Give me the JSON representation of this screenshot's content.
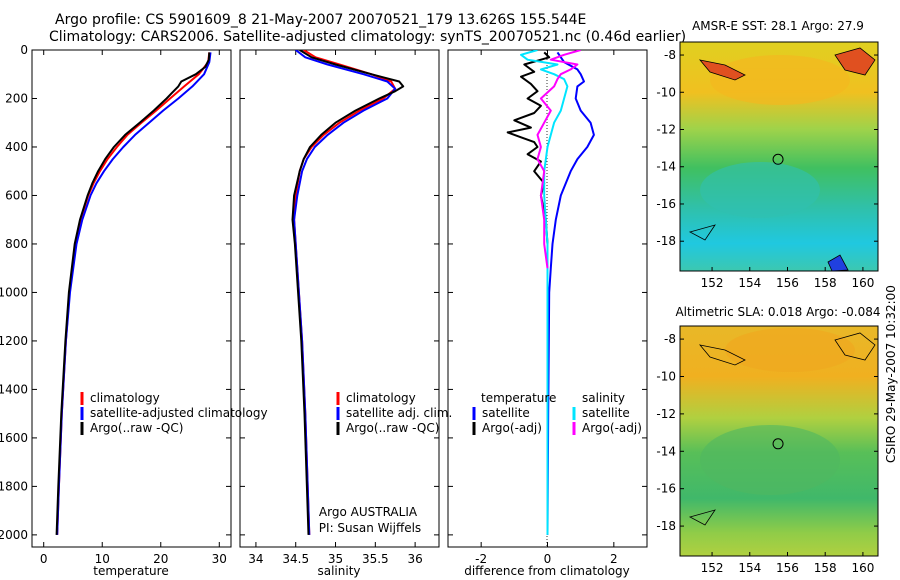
{
  "header": {
    "line1": "Argo profile: CS 5901609_8 21-May-2007 20070521_179 13.626S 155.544E",
    "line2": "Climatology: CARS2006. Satellite-adjusted climatology: synTS_20070521.nc (0.46d earlier)"
  },
  "side_stamp": "CSIRO 29-May-2007 10:32:00",
  "colors": {
    "climatology": "#ff0000",
    "satellite": "#0000ff",
    "argo": "#000000",
    "sal_satellite": "#00e5ff",
    "sal_argo": "#ff00ff"
  },
  "chart_data": [
    {
      "type": "line",
      "name": "temperature",
      "xlabel": "temperature",
      "xlim": [
        -2,
        32
      ],
      "ylim": [
        0,
        2050
      ],
      "xticks": [
        "0",
        "10",
        "20",
        "30"
      ],
      "yticks": [
        "0",
        "200",
        "400",
        "600",
        "800",
        "1000",
        "1200",
        "1400",
        "1600",
        "1800",
        "2000"
      ],
      "legend": [
        "climatology",
        "satellite-adjusted climatology",
        "Argo(..raw -QC)"
      ],
      "series": [
        {
          "name": "climatology",
          "color": "red",
          "depth": [
            10,
            50,
            100,
            150,
            200,
            250,
            300,
            350,
            400,
            450,
            500,
            550,
            600,
            700,
            800,
            1000,
            1200,
            1500,
            1800,
            2000
          ],
          "values": [
            28.3,
            28.1,
            26.5,
            24.0,
            21.6,
            19.2,
            16.7,
            14.3,
            12.5,
            10.9,
            9.6,
            8.5,
            7.6,
            6.3,
            5.4,
            4.4,
            3.8,
            3.1,
            2.6,
            2.3
          ]
        },
        {
          "name": "satellite",
          "color": "blue",
          "depth": [
            10,
            50,
            100,
            150,
            200,
            250,
            300,
            350,
            400,
            450,
            500,
            550,
            600,
            700,
            800,
            1000,
            1200,
            1500,
            1800,
            2000
          ],
          "values": [
            28.5,
            28.3,
            27.4,
            25.4,
            23.0,
            20.4,
            18.0,
            15.6,
            13.6,
            11.8,
            10.3,
            9.0,
            8.0,
            6.6,
            5.6,
            4.5,
            3.8,
            3.1,
            2.6,
            2.3
          ]
        },
        {
          "name": "argo",
          "color": "black",
          "depth": [
            10,
            40,
            70,
            100,
            130,
            150,
            180,
            200,
            250,
            300,
            350,
            400,
            450,
            500,
            550,
            600,
            700,
            800,
            1000,
            1200,
            1500,
            1800,
            2000
          ],
          "values": [
            28.3,
            28.2,
            27.6,
            26.0,
            23.5,
            23.0,
            21.8,
            21.0,
            18.8,
            16.4,
            13.9,
            12.0,
            10.5,
            9.3,
            8.3,
            7.5,
            6.2,
            5.3,
            4.3,
            3.7,
            3.0,
            2.5,
            2.2
          ]
        }
      ]
    },
    {
      "type": "line",
      "name": "salinity",
      "xlabel": "salinity",
      "xlim": [
        33.8,
        36.3
      ],
      "ylim": [
        0,
        2050
      ],
      "xticks": [
        "34",
        "34.5",
        "35",
        "35.5",
        "36"
      ],
      "legend": [
        "climatology",
        "satellite adj. clim.",
        "Argo(..raw -QC)"
      ],
      "annotation": [
        "Argo AUSTRALIA",
        "PI: Susan Wijffels"
      ],
      "series": [
        {
          "name": "climatology",
          "color": "red",
          "depth": [
            0,
            30,
            60,
            100,
            130,
            160,
            200,
            250,
            300,
            350,
            400,
            450,
            500,
            600,
            700,
            800,
            1000,
            1200,
            1500,
            1800,
            2000
          ],
          "values": [
            34.6,
            34.75,
            35.05,
            35.45,
            35.7,
            35.75,
            35.6,
            35.3,
            35.05,
            34.85,
            34.7,
            34.6,
            34.55,
            34.5,
            34.48,
            34.5,
            34.54,
            34.58,
            34.62,
            34.65,
            34.67
          ]
        },
        {
          "name": "satellite",
          "color": "blue",
          "depth": [
            0,
            30,
            60,
            100,
            130,
            160,
            200,
            250,
            300,
            350,
            400,
            450,
            500,
            600,
            700,
            800,
            1000,
            1200,
            1500,
            1800,
            2000
          ],
          "values": [
            34.5,
            34.62,
            34.9,
            35.35,
            35.65,
            35.75,
            35.65,
            35.35,
            35.1,
            34.9,
            34.74,
            34.64,
            34.58,
            34.52,
            34.48,
            34.5,
            34.54,
            34.58,
            34.62,
            34.65,
            34.67
          ]
        },
        {
          "name": "argo",
          "color": "black",
          "depth": [
            0,
            30,
            60,
            100,
            130,
            150,
            170,
            200,
            250,
            300,
            350,
            400,
            450,
            500,
            600,
            700,
            800,
            1000,
            1200,
            1500,
            1800,
            2000
          ],
          "values": [
            34.55,
            34.7,
            35.0,
            35.45,
            35.8,
            35.85,
            35.75,
            35.55,
            35.25,
            35.0,
            34.82,
            34.68,
            34.6,
            34.55,
            34.48,
            34.46,
            34.49,
            34.53,
            34.57,
            34.61,
            34.64,
            34.66
          ]
        }
      ]
    },
    {
      "type": "line",
      "name": "difference",
      "xlabel": "difference from climatology",
      "xlim": [
        -3,
        3
      ],
      "ylim": [
        0,
        2050
      ],
      "xticks": [
        "-2",
        "0",
        "2"
      ],
      "legend_temperature": {
        "title": "temperature",
        "items": [
          "satellite",
          "Argo(-adj)"
        ]
      },
      "legend_salinity": {
        "title": "salinity",
        "items": [
          "satellite",
          "Argo(-adj)"
        ]
      },
      "series": [
        {
          "name": "temperature satellite",
          "color": "blue",
          "depth": [
            10,
            50,
            80,
            100,
            130,
            150,
            200,
            250,
            300,
            350,
            400,
            450,
            500,
            600,
            700,
            800,
            900,
            1000,
            1500,
            2000
          ],
          "values": [
            0.3,
            0.5,
            0.9,
            1.0,
            1.1,
            0.9,
            0.85,
            1.0,
            1.3,
            1.4,
            1.2,
            0.9,
            0.7,
            0.4,
            0.25,
            0.15,
            0.1,
            0.05,
            0.02,
            0.0
          ]
        },
        {
          "name": "temperature argo",
          "color": "black",
          "depth": [
            10,
            30,
            60,
            90,
            110,
            140,
            170,
            200,
            230,
            260,
            290,
            320,
            340,
            360,
            380,
            400,
            430,
            460,
            500,
            550,
            600,
            700,
            800
          ],
          "values": [
            -0.1,
            0.05,
            -0.7,
            -0.4,
            -0.8,
            -0.5,
            -0.3,
            -0.6,
            -0.2,
            -0.4,
            -1.0,
            -0.5,
            -1.2,
            -0.8,
            -0.4,
            -0.3,
            -0.6,
            -0.2,
            -0.4,
            -0.1,
            -0.2,
            -0.05,
            0.0
          ]
        },
        {
          "name": "salinity satellite",
          "color": "cyan",
          "depth": [
            0,
            20,
            40,
            60,
            80,
            100,
            120,
            150,
            200,
            250,
            300,
            400,
            500,
            600,
            700,
            800,
            1000,
            1500,
            2000
          ],
          "values": [
            -0.3,
            -0.8,
            -0.6,
            0.3,
            -0.2,
            0.2,
            0.5,
            0.6,
            0.5,
            0.4,
            0.2,
            0.0,
            -0.1,
            -0.1,
            -0.05,
            0.0,
            0.0,
            0.0,
            0.0
          ]
        },
        {
          "name": "salinity argo",
          "color": "magenta",
          "depth": [
            0,
            20,
            40,
            60,
            80,
            100,
            120,
            150,
            200,
            250,
            300,
            350,
            400,
            450,
            500,
            600,
            700,
            800,
            900
          ],
          "values": [
            1.0,
            0.5,
            0.1,
            0.9,
            0.7,
            0.4,
            0.3,
            0.2,
            -0.2,
            0.1,
            -0.1,
            -0.3,
            -0.2,
            -0.3,
            -0.1,
            -0.2,
            -0.1,
            -0.1,
            0.0
          ]
        }
      ]
    },
    {
      "type": "heatmap",
      "name": "sst map",
      "title": "AMSR-E SST: 28.1 Argo: 27.9",
      "xticks": [
        "152",
        "154",
        "156",
        "158",
        "160"
      ],
      "yticks": [
        "-8",
        "-10",
        "-12",
        "-14",
        "-16",
        "-18"
      ],
      "marker": {
        "lon": 155.5,
        "lat": -13.6
      }
    },
    {
      "type": "heatmap",
      "name": "sla map",
      "title": "Altimetric SLA: 0.018 Argo: -0.084",
      "xticks": [
        "152",
        "154",
        "156",
        "158",
        "160"
      ],
      "yticks": [
        "-8",
        "-10",
        "-12",
        "-14",
        "-16",
        "-18"
      ],
      "marker": {
        "lon": 155.5,
        "lat": -13.6
      }
    }
  ]
}
